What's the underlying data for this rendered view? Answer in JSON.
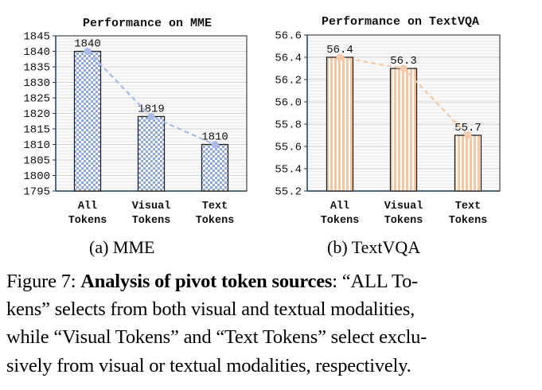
{
  "chart_data": [
    {
      "type": "bar",
      "title": "Performance on MME",
      "categories": [
        "All Tokens",
        "Visual Tokens",
        "Text Tokens"
      ],
      "category_lines": [
        [
          "All",
          "Tokens"
        ],
        [
          "Visual",
          "Tokens"
        ],
        [
          "Text",
          "Tokens"
        ]
      ],
      "values": [
        1840,
        1819,
        1810
      ],
      "data_labels": [
        "1840",
        "1819",
        "1810"
      ],
      "ylim": [
        1795,
        1845
      ],
      "yticks": [
        1795,
        1800,
        1805,
        1810,
        1815,
        1820,
        1825,
        1830,
        1835,
        1840,
        1845
      ],
      "ytick_labels": [
        "1795",
        "1800",
        "1805",
        "1810",
        "1815",
        "1820",
        "1825",
        "1830",
        "1835",
        "1840",
        "1845"
      ],
      "grid": true,
      "overlay": "dashed line through bar tops",
      "bar_color": "#8ea6e2",
      "line_color": "#a9bce8",
      "pattern": "checker"
    },
    {
      "type": "bar",
      "title": "Performance on TextVQA",
      "categories": [
        "All Tokens",
        "Visual Tokens",
        "Text Tokens"
      ],
      "category_lines": [
        [
          "All",
          "Tokens"
        ],
        [
          "Visual",
          "Tokens"
        ],
        [
          "Text",
          "Tokens"
        ]
      ],
      "values": [
        56.4,
        56.3,
        55.7
      ],
      "data_labels": [
        "56.4",
        "56.3",
        "55.7"
      ],
      "ylim": [
        55.2,
        56.6
      ],
      "yticks": [
        55.2,
        55.4,
        55.6,
        55.8,
        56.0,
        56.2,
        56.4,
        56.6
      ],
      "ytick_labels": [
        "55.2",
        "55.4",
        "55.6",
        "55.8",
        "56.0",
        "56.2",
        "56.4",
        "56.6"
      ],
      "grid": true,
      "overlay": "dashed line through bar tops",
      "bar_color": "#f7c6a2",
      "line_color": "#f6c9a8",
      "pattern": "stripes"
    }
  ],
  "subcaptions": [
    "(a)  MME",
    "(b)  TextVQA"
  ],
  "caption": {
    "prefix": "Figure 7: ",
    "bold": "Analysis of pivot token sources",
    "line1_rest": ": “ALL To-",
    "line2": "kens” selects from both visual and textual modalities,",
    "line3": "while “Visual Tokens” and “Text Tokens” select exclu-",
    "line4": "sively from visual or textual modalities, respectively."
  }
}
